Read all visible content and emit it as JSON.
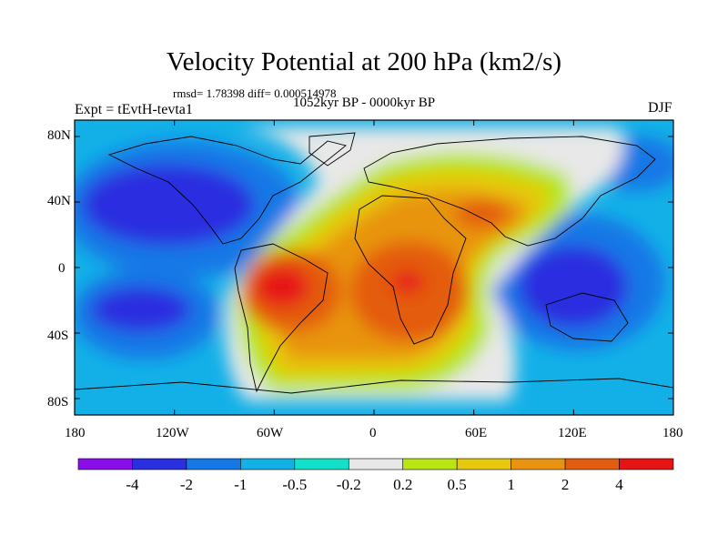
{
  "figure": {
    "title": "Velocity Potential at 200 hPa (km2/s)",
    "stats_line": "rmsd= 1.78398 diff= 0.000514978",
    "period": "1052kyr BP - 0000kyr BP",
    "experiment": "Expt = tEvtH-tevta1",
    "season": "DJF"
  },
  "axes": {
    "lat_ticks": [
      "80N",
      "40N",
      "0",
      "40S",
      "80S"
    ],
    "lon_ticks": [
      "180",
      "120W",
      "60W",
      "0",
      "60E",
      "120E",
      "180"
    ]
  },
  "colorbar": {
    "colors": [
      "#8a0ee8",
      "#2a2fe0",
      "#1478e6",
      "#13b0e8",
      "#13e0c8",
      "#e8e8e8",
      "#b8e614",
      "#e6c80e",
      "#e89410",
      "#e45c10",
      "#e61414"
    ],
    "labels": [
      "-4",
      "-2",
      "-1",
      "-0.5",
      "-0.2",
      "0.2",
      "0.5",
      "1",
      "2",
      "4"
    ]
  },
  "chart_data": {
    "type": "heatmap",
    "title": "Velocity Potential at 200 hPa (km2/s)",
    "subtitle": "1052kyr BP - 0000kyr BP",
    "variable": "velocity potential difference, 200 hPa",
    "units": "km2/s",
    "season": "DJF",
    "x_range": [
      -180,
      180
    ],
    "y_range": [
      -90,
      90
    ],
    "levels": [
      -4,
      -2,
      -1,
      -0.5,
      -0.2,
      0.2,
      0.5,
      1,
      2,
      4
    ],
    "features": [
      {
        "name": "central Pacific / North America low",
        "approx_lon": -130,
        "approx_lat": 40,
        "level_min": -2
      },
      {
        "name": "eastern Pacific low",
        "approx_lon": -145,
        "approx_lat": -30,
        "level_min": -2
      },
      {
        "name": "Maritime Continent low",
        "approx_lon": 120,
        "approx_lat": -5,
        "level_min": -2
      },
      {
        "name": "South America high",
        "approx_lon": -60,
        "approx_lat": -15,
        "level_min": 4
      },
      {
        "name": "Africa high",
        "approx_lon": 20,
        "approx_lat": -10,
        "level_min": 4
      },
      {
        "name": "Mediterranean / Arabia high",
        "approx_lon": 45,
        "approx_lat": 30,
        "level_min": 2
      }
    ]
  }
}
